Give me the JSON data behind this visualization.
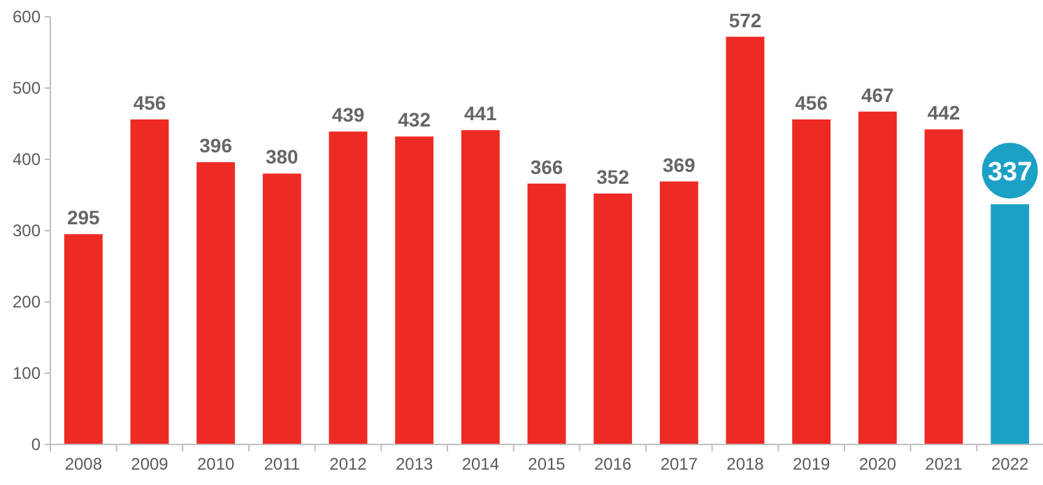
{
  "chart_data": {
    "type": "bar",
    "categories": [
      "2008",
      "2009",
      "2010",
      "2011",
      "2012",
      "2013",
      "2014",
      "2015",
      "2016",
      "2017",
      "2018",
      "2019",
      "2020",
      "2021",
      "2022"
    ],
    "values": [
      295,
      456,
      396,
      380,
      439,
      432,
      441,
      366,
      352,
      369,
      572,
      456,
      467,
      442,
      337
    ],
    "colors": [
      "#ee2a24",
      "#ee2a24",
      "#ee2a24",
      "#ee2a24",
      "#ee2a24",
      "#ee2a24",
      "#ee2a24",
      "#ee2a24",
      "#ee2a24",
      "#ee2a24",
      "#ee2a24",
      "#ee2a24",
      "#ee2a24",
      "#ee2a24",
      "#1ba1c5"
    ],
    "ylim": [
      0,
      600
    ],
    "yticks": [
      0,
      100,
      200,
      300,
      400,
      500,
      600
    ],
    "grid": false,
    "data_labels": true
  }
}
